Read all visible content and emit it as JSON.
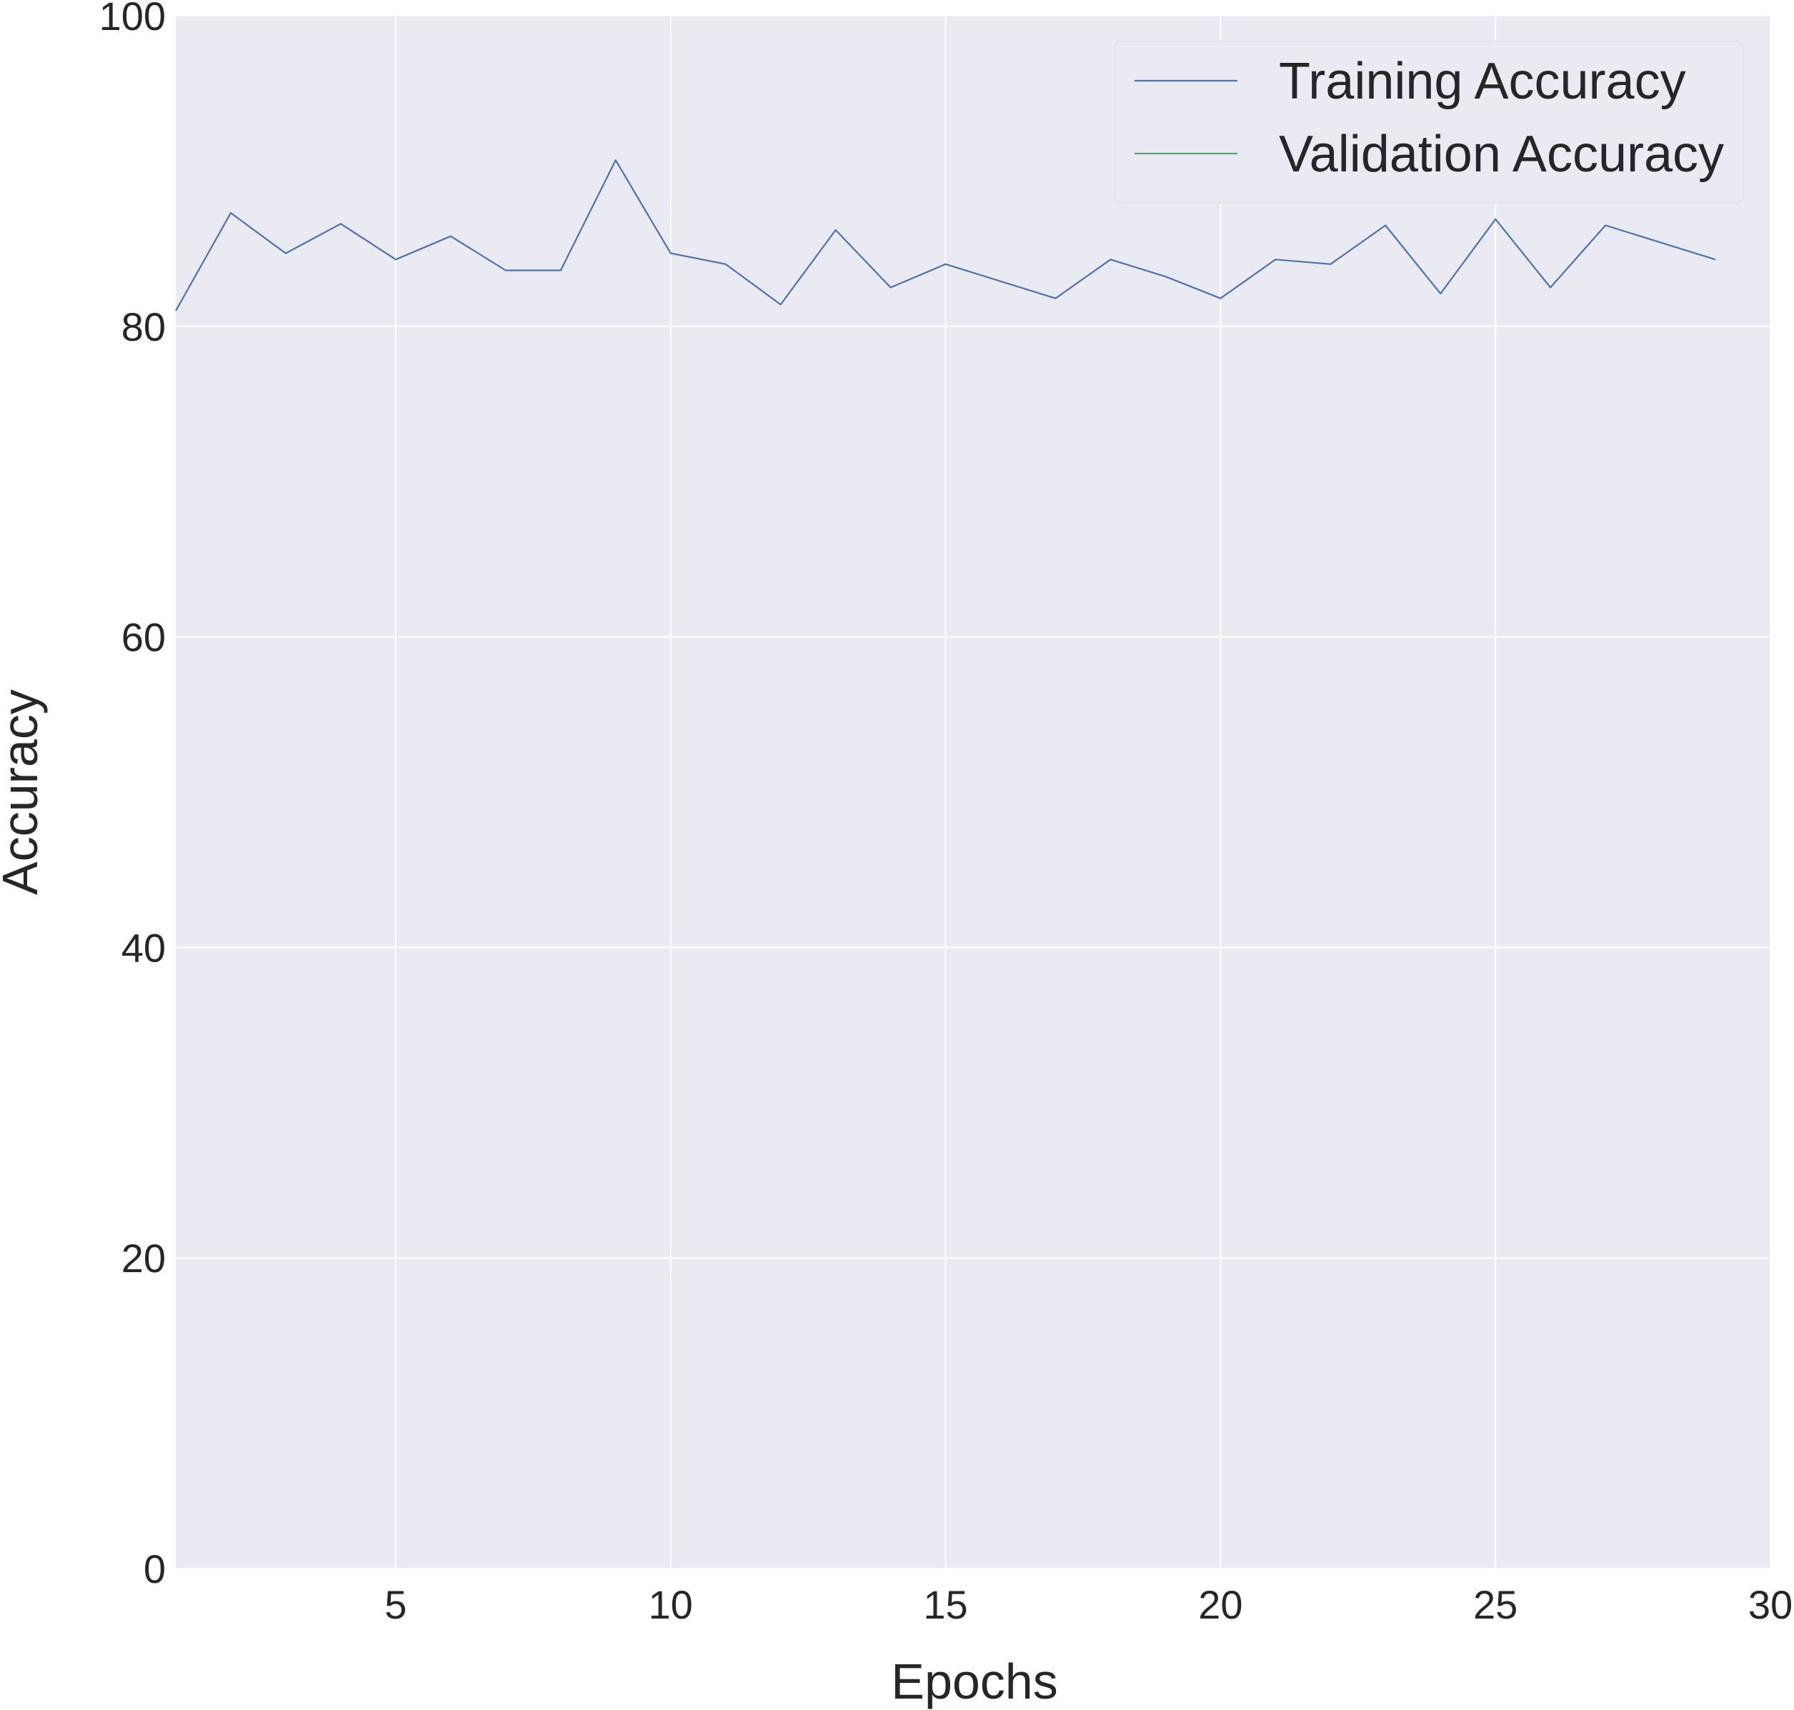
{
  "chart_data": {
    "type": "line",
    "title": "",
    "xlabel": "Epochs",
    "ylabel": "Accuracy",
    "xlim": [
      1,
      30
    ],
    "ylim": [
      0,
      100
    ],
    "x_ticks": [
      5,
      10,
      15,
      20,
      25,
      30
    ],
    "y_ticks": [
      0,
      20,
      40,
      60,
      80,
      100
    ],
    "grid": true,
    "legend_position": "top-right",
    "colors": {
      "background": "#eaeaf2",
      "grid": "#ffffff",
      "training": "#4c72b0",
      "validation": "#55a868",
      "text": "#262626"
    },
    "series": [
      {
        "name": "Training Accuracy",
        "color": "#4c72b0",
        "x": [
          1,
          2,
          3,
          4,
          5,
          6,
          7,
          8,
          9,
          10,
          11,
          12,
          13,
          14,
          15,
          16,
          17,
          18,
          19,
          20,
          21,
          22,
          23,
          24,
          25,
          26,
          27,
          28,
          29
        ],
        "y": [
          81.0,
          87.3,
          84.7,
          86.6,
          84.3,
          85.8,
          83.6,
          83.6,
          90.7,
          84.7,
          84.0,
          81.4,
          86.2,
          82.5,
          84.0,
          82.9,
          81.8,
          84.3,
          83.2,
          81.8,
          84.3,
          84.0,
          86.5,
          82.1,
          86.9,
          82.5,
          86.5,
          85.4,
          84.3
        ]
      },
      {
        "name": "Validation Accuracy",
        "color": "#55a868",
        "x": [],
        "y": []
      }
    ]
  }
}
